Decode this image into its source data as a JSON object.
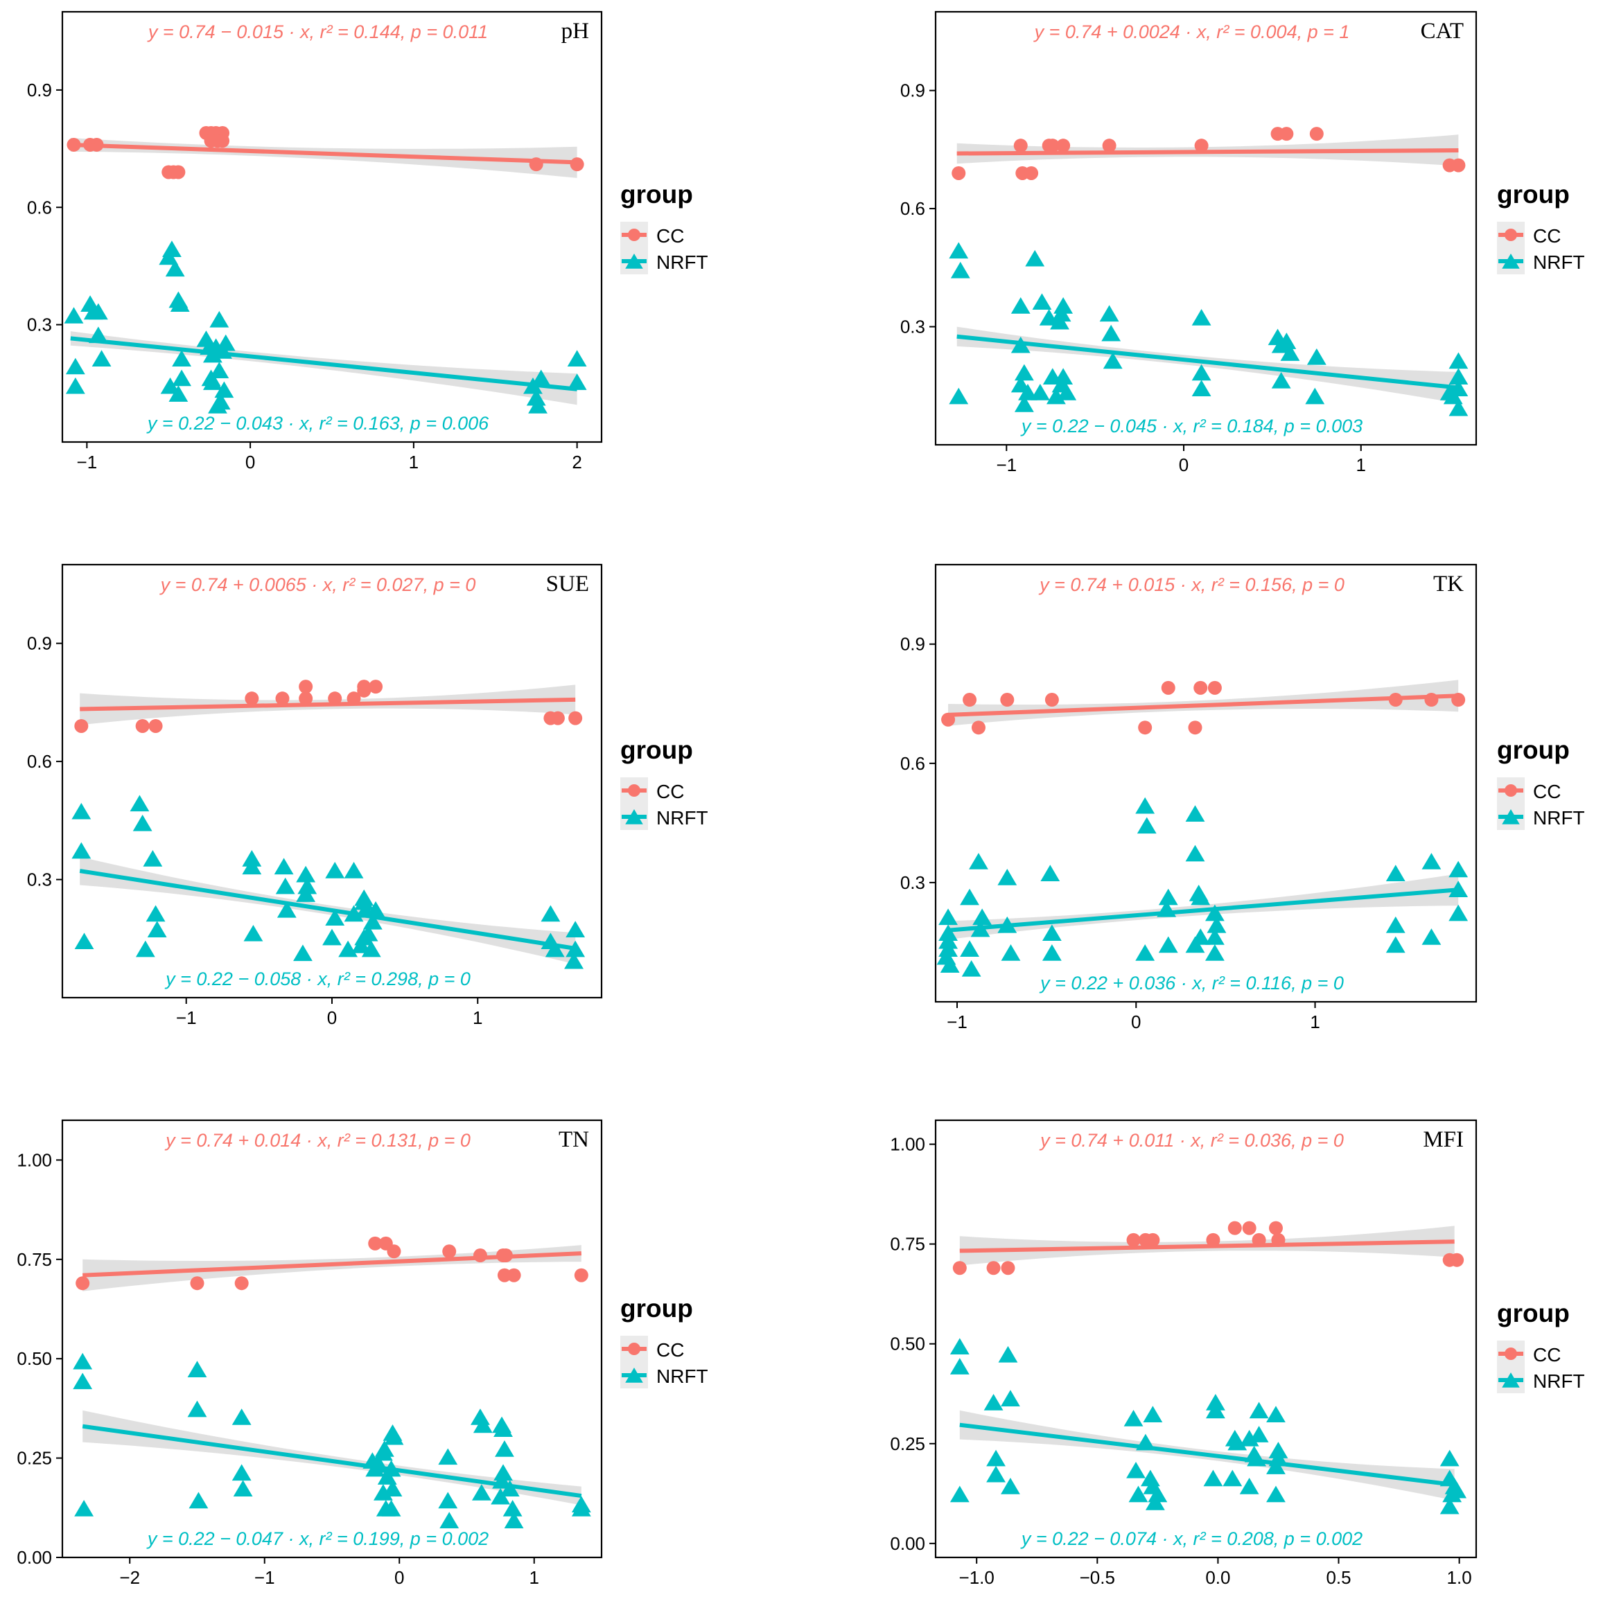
{
  "colors": {
    "cc": "#F8766D",
    "nrft": "#00BFC4",
    "ribbon": "#d6d6d6",
    "axis": "#000000",
    "tick_text": "#000000"
  },
  "legend": {
    "title": "group",
    "cc_label": "CC",
    "nrft_label": "NRFT",
    "cc_icon": "circle-marker-icon",
    "nrft_icon": "triangle-marker-icon"
  },
  "chart_data": [
    {
      "type": "scatter",
      "title": "pH",
      "xlabel": "",
      "ylabel": "",
      "xlim": [
        -1.15,
        2.15
      ],
      "ylim": [
        0.0,
        1.1
      ],
      "xticks": [
        -1,
        0,
        1,
        2
      ],
      "xtick_labels": [
        "−1",
        "0",
        "1",
        "2"
      ],
      "yticks": [
        0.3,
        0.6,
        0.9
      ],
      "ytick_labels": [
        "0.3",
        "0.6",
        "0.9"
      ],
      "cc_equation": "y = 0.74 − 0.015 · x,  r² = 0.144,  p = 0.011",
      "nrft_equation": "y = 0.22 − 0.043 · x,  r² = 0.163,  p = 0.006",
      "cc_line": {
        "x": [
          -1.1,
          2.0
        ],
        "y": [
          0.76,
          0.715
        ]
      },
      "nrft_line": {
        "x": [
          -1.1,
          2.0
        ],
        "y": [
          0.265,
          0.135
        ]
      },
      "series": [
        {
          "name": "CC",
          "x": [
            -1.08,
            -0.98,
            -0.94,
            -0.5,
            -0.47,
            -0.44,
            -0.27,
            -0.24,
            -0.21,
            -0.17,
            -0.24,
            -0.2,
            -0.17,
            1.75,
            2.0
          ],
          "y": [
            0.76,
            0.76,
            0.76,
            0.69,
            0.69,
            0.69,
            0.79,
            0.79,
            0.79,
            0.79,
            0.77,
            0.77,
            0.77,
            0.71,
            0.71
          ]
        },
        {
          "name": "NRFT",
          "x": [
            -1.08,
            -1.07,
            -1.07,
            -0.98,
            -0.96,
            -0.93,
            -0.93,
            -0.91,
            -0.5,
            -0.48,
            -0.46,
            -0.44,
            -0.43,
            -0.42,
            -0.42,
            -0.44,
            -0.49,
            -0.27,
            -0.25,
            -0.23,
            -0.21,
            -0.19,
            -0.17,
            -0.15,
            -0.23,
            -0.19,
            -0.16,
            -0.24,
            -0.2,
            -0.18,
            1.73,
            1.75,
            1.76,
            1.78,
            2.0,
            2.0
          ],
          "y": [
            0.32,
            0.19,
            0.14,
            0.35,
            0.33,
            0.33,
            0.27,
            0.21,
            0.47,
            0.49,
            0.44,
            0.36,
            0.35,
            0.21,
            0.16,
            0.12,
            0.14,
            0.26,
            0.24,
            0.22,
            0.24,
            0.31,
            0.23,
            0.25,
            0.15,
            0.18,
            0.13,
            0.16,
            0.09,
            0.1,
            0.14,
            0.11,
            0.09,
            0.16,
            0.21,
            0.15
          ]
        }
      ]
    },
    {
      "type": "scatter",
      "title": "CAT",
      "xlabel": "",
      "ylabel": "",
      "xlim": [
        -1.4,
        1.65
      ],
      "ylim": [
        0.0,
        1.1
      ],
      "xticks": [
        -1,
        0,
        1
      ],
      "xtick_labels": [
        "−1",
        "0",
        "1"
      ],
      "yticks": [
        0.3,
        0.6,
        0.9
      ],
      "ytick_labels": [
        "0.3",
        "0.6",
        "0.9"
      ],
      "cc_equation": "y = 0.74 + 0.0024 · x,  r² = 0.004,  p = 1",
      "nrft_equation": "y = 0.22 − 0.045 · x,  r² = 0.184,  p = 0.003",
      "cc_line": {
        "x": [
          -1.28,
          1.55
        ],
        "y": [
          0.74,
          0.748
        ]
      },
      "nrft_line": {
        "x": [
          -1.28,
          1.55
        ],
        "y": [
          0.275,
          0.145
        ]
      },
      "series": [
        {
          "name": "CC",
          "x": [
            -1.27,
            -0.92,
            -0.91,
            -0.86,
            -0.76,
            -0.74,
            -0.68,
            -0.42,
            0.1,
            0.53,
            0.58,
            0.75,
            1.5,
            1.55
          ],
          "y": [
            0.69,
            0.76,
            0.69,
            0.69,
            0.76,
            0.76,
            0.76,
            0.76,
            0.76,
            0.79,
            0.79,
            0.79,
            0.71,
            0.71
          ]
        },
        {
          "name": "NRFT",
          "x": [
            -1.27,
            -1.26,
            -1.27,
            -0.92,
            -0.92,
            -0.9,
            -0.92,
            -0.88,
            -0.9,
            -0.84,
            -0.8,
            -0.81,
            -0.76,
            -0.74,
            -0.72,
            -0.68,
            -0.69,
            -0.7,
            -0.68,
            -0.66,
            -0.69,
            -0.42,
            -0.41,
            -0.4,
            0.1,
            0.1,
            0.1,
            0.53,
            0.55,
            0.58,
            0.6,
            0.55,
            0.75,
            0.74,
            1.5,
            1.52,
            1.55,
            1.55,
            1.55,
            1.55
          ],
          "y": [
            0.49,
            0.44,
            0.12,
            0.35,
            0.25,
            0.18,
            0.15,
            0.13,
            0.1,
            0.47,
            0.36,
            0.13,
            0.32,
            0.17,
            0.12,
            0.35,
            0.33,
            0.31,
            0.17,
            0.13,
            0.15,
            0.33,
            0.28,
            0.21,
            0.32,
            0.18,
            0.14,
            0.27,
            0.25,
            0.26,
            0.23,
            0.16,
            0.22,
            0.12,
            0.13,
            0.12,
            0.21,
            0.17,
            0.14,
            0.09
          ]
        }
      ]
    },
    {
      "type": "scatter",
      "title": "SUE",
      "xlabel": "",
      "ylabel": "",
      "xlim": [
        -1.85,
        1.85
      ],
      "ylim": [
        0.0,
        1.1
      ],
      "xticks": [
        -1,
        0,
        1
      ],
      "xtick_labels": [
        "−1",
        "0",
        "1"
      ],
      "yticks": [
        0.3,
        0.6,
        0.9
      ],
      "ytick_labels": [
        "0.3",
        "0.6",
        "0.9"
      ],
      "cc_equation": "y = 0.74 + 0.0065 · x,  r² = 0.027,  p = 0",
      "nrft_equation": "y = 0.22 − 0.058 · x,  r² = 0.298,  p = 0",
      "cc_line": {
        "x": [
          -1.73,
          1.67
        ],
        "y": [
          0.733,
          0.757
        ]
      },
      "nrft_line": {
        "x": [
          -1.73,
          1.67
        ],
        "y": [
          0.322,
          0.125
        ]
      },
      "series": [
        {
          "name": "CC",
          "x": [
            -1.72,
            -1.3,
            -1.21,
            -0.55,
            -0.34,
            -0.18,
            -0.18,
            0.02,
            0.15,
            0.22,
            0.22,
            0.3,
            1.5,
            1.55,
            1.67
          ],
          "y": [
            0.69,
            0.69,
            0.69,
            0.76,
            0.76,
            0.76,
            0.79,
            0.76,
            0.76,
            0.78,
            0.79,
            0.79,
            0.71,
            0.71,
            0.71
          ]
        },
        {
          "name": "NRFT",
          "x": [
            -1.72,
            -1.72,
            -1.7,
            -1.32,
            -1.3,
            -1.28,
            -1.23,
            -1.21,
            -1.2,
            -0.55,
            -0.55,
            -0.54,
            -0.33,
            -0.32,
            -0.31,
            -0.18,
            -0.17,
            -0.18,
            -0.2,
            0.02,
            0.02,
            0.0,
            0.15,
            0.15,
            0.11,
            0.22,
            0.22,
            0.23,
            0.25,
            0.22,
            0.2,
            0.3,
            0.28,
            0.27,
            1.5,
            1.5,
            1.53,
            1.67,
            1.67,
            1.66
          ],
          "y": [
            0.47,
            0.37,
            0.14,
            0.49,
            0.44,
            0.12,
            0.35,
            0.21,
            0.17,
            0.35,
            0.33,
            0.16,
            0.33,
            0.28,
            0.22,
            0.31,
            0.28,
            0.26,
            0.11,
            0.32,
            0.2,
            0.15,
            0.32,
            0.21,
            0.12,
            0.25,
            0.24,
            0.22,
            0.16,
            0.15,
            0.13,
            0.22,
            0.19,
            0.12,
            0.21,
            0.14,
            0.12,
            0.17,
            0.12,
            0.09
          ]
        }
      ]
    },
    {
      "type": "scatter",
      "title": "TK",
      "xlabel": "",
      "ylabel": "",
      "xlim": [
        -1.12,
        1.9
      ],
      "ylim": [
        0.0,
        1.1
      ],
      "xticks": [
        -1,
        0,
        1
      ],
      "xtick_labels": [
        "−1",
        "0",
        "1"
      ],
      "yticks": [
        0.3,
        0.6,
        0.9
      ],
      "ytick_labels": [
        "0.3",
        "0.6",
        "0.9"
      ],
      "cc_equation": "y = 0.74 + 0.015 · x,  r² = 0.156,  p = 0",
      "nrft_equation": "y = 0.22 + 0.036 · x,  r² = 0.116,  p = 0",
      "cc_line": {
        "x": [
          -1.05,
          1.8
        ],
        "y": [
          0.722,
          0.77
        ]
      },
      "nrft_line": {
        "x": [
          -1.05,
          1.8
        ],
        "y": [
          0.18,
          0.282
        ]
      },
      "series": [
        {
          "name": "CC",
          "x": [
            -1.05,
            -0.93,
            -0.88,
            -0.72,
            -0.47,
            0.05,
            0.18,
            0.33,
            0.36,
            0.44,
            1.45,
            1.65,
            1.8
          ],
          "y": [
            0.71,
            0.76,
            0.69,
            0.76,
            0.76,
            0.69,
            0.79,
            0.69,
            0.79,
            0.79,
            0.76,
            0.76,
            0.76
          ]
        },
        {
          "name": "NRFT",
          "x": [
            -1.05,
            -1.05,
            -1.05,
            -1.05,
            -1.06,
            -1.04,
            -0.93,
            -0.93,
            -0.92,
            -0.88,
            -0.86,
            -0.87,
            -0.72,
            -0.72,
            -0.7,
            -0.48,
            -0.47,
            -0.47,
            0.05,
            0.06,
            0.05,
            0.18,
            0.17,
            0.18,
            0.33,
            0.33,
            0.35,
            0.36,
            0.36,
            0.33,
            0.44,
            0.45,
            0.44,
            0.44,
            1.45,
            1.45,
            1.45,
            1.65,
            1.65,
            1.8,
            1.8,
            1.8
          ],
          "y": [
            0.21,
            0.17,
            0.15,
            0.13,
            0.11,
            0.09,
            0.26,
            0.13,
            0.08,
            0.35,
            0.21,
            0.18,
            0.31,
            0.19,
            0.12,
            0.32,
            0.17,
            0.12,
            0.49,
            0.44,
            0.12,
            0.26,
            0.23,
            0.14,
            0.47,
            0.37,
            0.27,
            0.26,
            0.16,
            0.14,
            0.22,
            0.19,
            0.16,
            0.12,
            0.32,
            0.19,
            0.14,
            0.35,
            0.16,
            0.33,
            0.28,
            0.22
          ]
        }
      ]
    },
    {
      "type": "scatter",
      "title": "TN",
      "xlabel": "",
      "ylabel": "",
      "xlim": [
        -2.5,
        1.5
      ],
      "ylim": [
        0.0,
        1.1
      ],
      "xticks": [
        -2,
        -1,
        0,
        1
      ],
      "xtick_labels": [
        "−2",
        "−1",
        "0",
        "1"
      ],
      "yticks": [
        0.0,
        0.25,
        0.5,
        0.75,
        1.0
      ],
      "ytick_labels": [
        "0.00",
        "0.25",
        "0.50",
        "0.75",
        "1.00"
      ],
      "cc_equation": "y = 0.74 + 0.014 · x,  r² = 0.131,  p = 0",
      "nrft_equation": "y = 0.22 − 0.047 · x,  r² = 0.199,  p = 0.002",
      "cc_line": {
        "x": [
          -2.35,
          1.35
        ],
        "y": [
          0.71,
          0.765
        ]
      },
      "nrft_line": {
        "x": [
          -2.35,
          1.35
        ],
        "y": [
          0.33,
          0.155
        ]
      },
      "series": [
        {
          "name": "CC",
          "x": [
            -2.35,
            -1.5,
            -1.17,
            -0.18,
            -0.1,
            -0.04,
            0.37,
            0.6,
            0.77,
            0.79,
            0.78,
            0.85,
            1.35
          ],
          "y": [
            0.69,
            0.69,
            0.69,
            0.79,
            0.79,
            0.77,
            0.77,
            0.76,
            0.76,
            0.76,
            0.71,
            0.71,
            0.71
          ]
        },
        {
          "name": "NRFT",
          "x": [
            -2.35,
            -2.35,
            -2.34,
            -1.5,
            -1.5,
            -1.49,
            -1.17,
            -1.17,
            -1.16,
            -0.2,
            -0.18,
            -0.15,
            -0.12,
            -0.11,
            -0.09,
            -0.05,
            -0.04,
            -0.06,
            -0.05,
            -0.06,
            -0.12,
            -0.1,
            0.36,
            0.36,
            0.37,
            0.6,
            0.62,
            0.61,
            0.76,
            0.77,
            0.78,
            0.77,
            0.76,
            0.75,
            0.82,
            0.84,
            0.85,
            1.35,
            1.35
          ],
          "y": [
            0.49,
            0.44,
            0.12,
            0.47,
            0.37,
            0.14,
            0.35,
            0.21,
            0.17,
            0.24,
            0.22,
            0.23,
            0.26,
            0.27,
            0.2,
            0.31,
            0.3,
            0.22,
            0.17,
            0.12,
            0.16,
            0.12,
            0.25,
            0.14,
            0.09,
            0.35,
            0.33,
            0.16,
            0.33,
            0.32,
            0.27,
            0.21,
            0.19,
            0.15,
            0.17,
            0.12,
            0.09,
            0.13,
            0.12
          ]
        }
      ]
    },
    {
      "type": "scatter",
      "title": "MFI",
      "xlabel": "",
      "ylabel": "",
      "xlim": [
        -1.17,
        1.07
      ],
      "ylim": [
        -0.035,
        1.06
      ],
      "xticks": [
        -1.0,
        -0.5,
        0.0,
        0.5,
        1.0
      ],
      "xtick_labels": [
        "−1.0",
        "−0.5",
        "0.0",
        "0.5",
        "1.0"
      ],
      "yticks": [
        0.0,
        0.25,
        0.5,
        0.75,
        1.0
      ],
      "ytick_labels": [
        "0.00",
        "0.25",
        "0.50",
        "0.75",
        "1.00"
      ],
      "cc_equation": "y = 0.74 + 0.011 · x,  r² = 0.036,  p = 0",
      "nrft_equation": "y = 0.22 − 0.074 · x,  r² = 0.208,  p = 0.002",
      "cc_line": {
        "x": [
          -1.07,
          0.98
        ],
        "y": [
          0.733,
          0.756
        ]
      },
      "nrft_line": {
        "x": [
          -1.07,
          0.98
        ],
        "y": [
          0.297,
          0.147
        ]
      },
      "series": [
        {
          "name": "CC",
          "x": [
            -1.07,
            -0.93,
            -0.87,
            -0.35,
            -0.3,
            -0.27,
            -0.02,
            0.07,
            0.13,
            0.17,
            0.24,
            0.25,
            0.96,
            0.99
          ],
          "y": [
            0.69,
            0.69,
            0.69,
            0.76,
            0.76,
            0.76,
            0.76,
            0.79,
            0.79,
            0.76,
            0.79,
            0.76,
            0.71,
            0.71
          ]
        },
        {
          "name": "NRFT",
          "x": [
            -1.07,
            -1.07,
            -1.07,
            -0.93,
            -0.92,
            -0.92,
            -0.87,
            -0.86,
            -0.86,
            -0.35,
            -0.34,
            -0.33,
            -0.3,
            -0.28,
            -0.27,
            -0.27,
            -0.26,
            -0.25,
            -0.01,
            -0.01,
            -0.02,
            0.07,
            0.08,
            0.06,
            0.13,
            0.15,
            0.17,
            0.17,
            0.16,
            0.13,
            0.24,
            0.25,
            0.25,
            0.24,
            0.24,
            0.96,
            0.96,
            0.97,
            0.98,
            0.99,
            0.96
          ],
          "y": [
            0.49,
            0.44,
            0.12,
            0.35,
            0.21,
            0.17,
            0.47,
            0.36,
            0.14,
            0.31,
            0.18,
            0.12,
            0.25,
            0.16,
            0.32,
            0.14,
            0.1,
            0.12,
            0.35,
            0.33,
            0.16,
            0.26,
            0.25,
            0.16,
            0.26,
            0.22,
            0.33,
            0.27,
            0.21,
            0.14,
            0.32,
            0.23,
            0.21,
            0.19,
            0.12,
            0.21,
            0.16,
            0.12,
            0.14,
            0.13,
            0.09
          ]
        }
      ]
    }
  ]
}
